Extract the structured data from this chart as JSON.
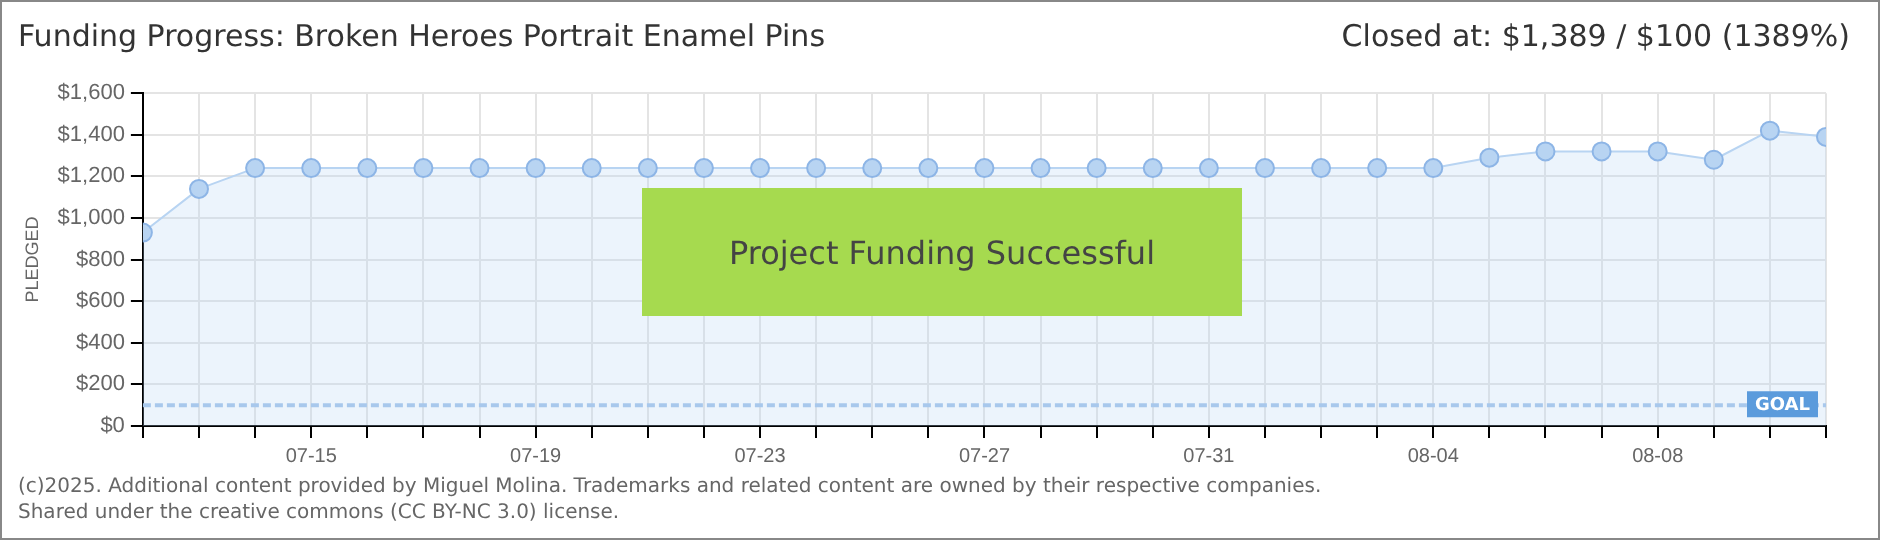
{
  "chart_data": {
    "type": "area",
    "title": "Funding Progress: Broken Heroes Portrait Enamel Pins",
    "subtitle": "Closed at: $1,389 / $100 (1389%)",
    "ylabel": "PLEDGED",
    "x": [
      "--07-12",
      "--07-13",
      "--07-14",
      "--07-15",
      "--07-16",
      "--07-17",
      "--07-18",
      "--07-19",
      "--07-20",
      "--07-21",
      "--07-22",
      "--07-23",
      "--07-24",
      "--07-25",
      "--07-26",
      "--07-27",
      "--07-28",
      "--07-29",
      "--07-30",
      "--07-31",
      "--08-01",
      "--08-02",
      "--08-03",
      "--08-04",
      "--08-05",
      "--08-06",
      "--08-07",
      "--08-08",
      "--08-09",
      "--08-10",
      "--08-11"
    ],
    "series": [
      {
        "color": "#b8d4f2",
        "values": [
          930,
          1140,
          1240,
          1240,
          1240,
          1240,
          1240,
          1240,
          1240,
          1240,
          1240,
          1240,
          1240,
          1240,
          1240,
          1240,
          1240,
          1240,
          1240,
          1240,
          1240,
          1240,
          1240,
          1240,
          1290,
          1320,
          1320,
          1320,
          1280,
          1420,
          1390
        ]
      }
    ],
    "xlim": [
      "--07-12",
      "--08-11"
    ],
    "xticks": [
      {
        "value": "--07-12",
        "label": null
      },
      {
        "value": "--07-13",
        "label": null
      },
      {
        "value": "--07-14",
        "label": null
      },
      {
        "value": "--07-15",
        "label": "07-15"
      },
      {
        "value": "--07-16",
        "label": null
      },
      {
        "value": "--07-17",
        "label": null
      },
      {
        "value": "--07-18",
        "label": null
      },
      {
        "value": "--07-19",
        "label": "07-19"
      },
      {
        "value": "--07-20",
        "label": null
      },
      {
        "value": "--07-21",
        "label": null
      },
      {
        "value": "--07-22",
        "label": null
      },
      {
        "value": "--07-23",
        "label": "07-23"
      },
      {
        "value": "--07-24",
        "label": null
      },
      {
        "value": "--07-25",
        "label": null
      },
      {
        "value": "--07-26",
        "label": null
      },
      {
        "value": "--07-27",
        "label": "07-27"
      },
      {
        "value": "--07-28",
        "label": null
      },
      {
        "value": "--07-29",
        "label": null
      },
      {
        "value": "--07-30",
        "label": null
      },
      {
        "value": "--07-31",
        "label": "07-31"
      },
      {
        "value": "--08-01",
        "label": null
      },
      {
        "value": "--08-02",
        "label": null
      },
      {
        "value": "--08-03",
        "label": null
      },
      {
        "value": "--08-04",
        "label": "08-04"
      },
      {
        "value": "--08-05",
        "label": null
      },
      {
        "value": "--08-06",
        "label": null
      },
      {
        "value": "--08-07",
        "label": null
      },
      {
        "value": "--08-08",
        "label": "08-08"
      },
      {
        "value": "--08-09",
        "label": null
      },
      {
        "value": "--08-10",
        "label": null
      },
      {
        "value": "--08-11",
        "label": null
      }
    ],
    "ylim": [
      0,
      1600
    ],
    "yticks": [
      {
        "value": 0,
        "label": "$0"
      },
      {
        "value": 200,
        "label": "$200"
      },
      {
        "value": 400,
        "label": "$400"
      },
      {
        "value": 600,
        "label": "$600"
      },
      {
        "value": 800,
        "label": "$800"
      },
      {
        "value": 1000,
        "label": "$1,000"
      },
      {
        "value": 1200,
        "label": "$1,200"
      },
      {
        "value": 1400,
        "label": "$1,400"
      },
      {
        "value": 1600,
        "label": "$1,600"
      }
    ],
    "grid": true,
    "marker": "circle",
    "ref_lines": [
      {
        "axis": "y",
        "value": 100,
        "label": "GOAL",
        "color": "#a8c8ec",
        "line_style": "dashed"
      }
    ],
    "annotations": [
      "Project Funding Successful",
      "(c)2025. Additional content provided by Miguel Molina. Trademarks and related content are owned by their respective companies.",
      "Shared under the creative commons (CC BY-NC 3.0) license."
    ]
  }
}
